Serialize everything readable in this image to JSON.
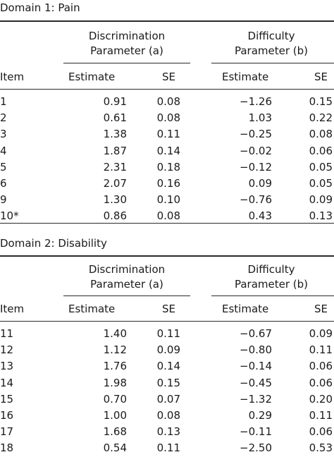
{
  "sections": [
    {
      "title": "Domain 1: Pain",
      "group_a": [
        "Discrimination",
        "Parameter (a)"
      ],
      "group_b": [
        "Difficulty",
        "Parameter (b)"
      ],
      "col_item": "Item",
      "col_est_a": "Estimate",
      "col_se_a": "SE",
      "col_est_b": "Estimate",
      "col_se_b": "SE",
      "rows": [
        {
          "item": "1",
          "a_est": "0.91",
          "a_se": "0.08",
          "b_est": "−1.26",
          "b_se": "0.15"
        },
        {
          "item": "2",
          "a_est": "0.61",
          "a_se": "0.08",
          "b_est": "1.03",
          "b_se": "0.22"
        },
        {
          "item": "3",
          "a_est": "1.38",
          "a_se": "0.11",
          "b_est": "−0.25",
          "b_se": "0.08"
        },
        {
          "item": "4",
          "a_est": "1.87",
          "a_se": "0.14",
          "b_est": "−0.02",
          "b_se": "0.06"
        },
        {
          "item": "5",
          "a_est": "2.31",
          "a_se": "0.18",
          "b_est": "−0.12",
          "b_se": "0.05"
        },
        {
          "item": "6",
          "a_est": "2.07",
          "a_se": "0.16",
          "b_est": "0.09",
          "b_se": "0.05"
        },
        {
          "item": "9",
          "a_est": "1.30",
          "a_se": "0.10",
          "b_est": "−0.76",
          "b_se": "0.09"
        },
        {
          "item": "10*",
          "a_est": "0.86",
          "a_se": "0.08",
          "b_est": "0.43",
          "b_se": "0.13"
        }
      ]
    },
    {
      "title": "Domain 2: Disability",
      "group_a": [
        "Discrimination",
        "Parameter (a)"
      ],
      "group_b": [
        "Difficulty",
        "Parameter (b)"
      ],
      "col_item": "Item",
      "col_est_a": "Estimate",
      "col_se_a": "SE",
      "col_est_b": "Estimate",
      "col_se_b": "SE",
      "rows": [
        {
          "item": "11",
          "a_est": "1.40",
          "a_se": "0.11",
          "b_est": "−0.67",
          "b_se": "0.09"
        },
        {
          "item": "12",
          "a_est": "1.12",
          "a_se": "0.09",
          "b_est": "−0.80",
          "b_se": "0.11"
        },
        {
          "item": "13",
          "a_est": "1.76",
          "a_se": "0.14",
          "b_est": "−0.14",
          "b_se": "0.06"
        },
        {
          "item": "14",
          "a_est": "1.98",
          "a_se": "0.15",
          "b_est": "−0.45",
          "b_se": "0.06"
        },
        {
          "item": "15",
          "a_est": "0.70",
          "a_se": "0.07",
          "b_est": "−1.32",
          "b_se": "0.20"
        },
        {
          "item": "16",
          "a_est": "1.00",
          "a_se": "0.08",
          "b_est": "0.29",
          "b_se": "0.11"
        },
        {
          "item": "17",
          "a_est": "1.68",
          "a_se": "0.13",
          "b_est": "−0.11",
          "b_se": "0.06"
        },
        {
          "item": "18",
          "a_est": "0.54",
          "a_se": "0.11",
          "b_est": "−2.50",
          "b_se": "0.53"
        }
      ]
    }
  ]
}
